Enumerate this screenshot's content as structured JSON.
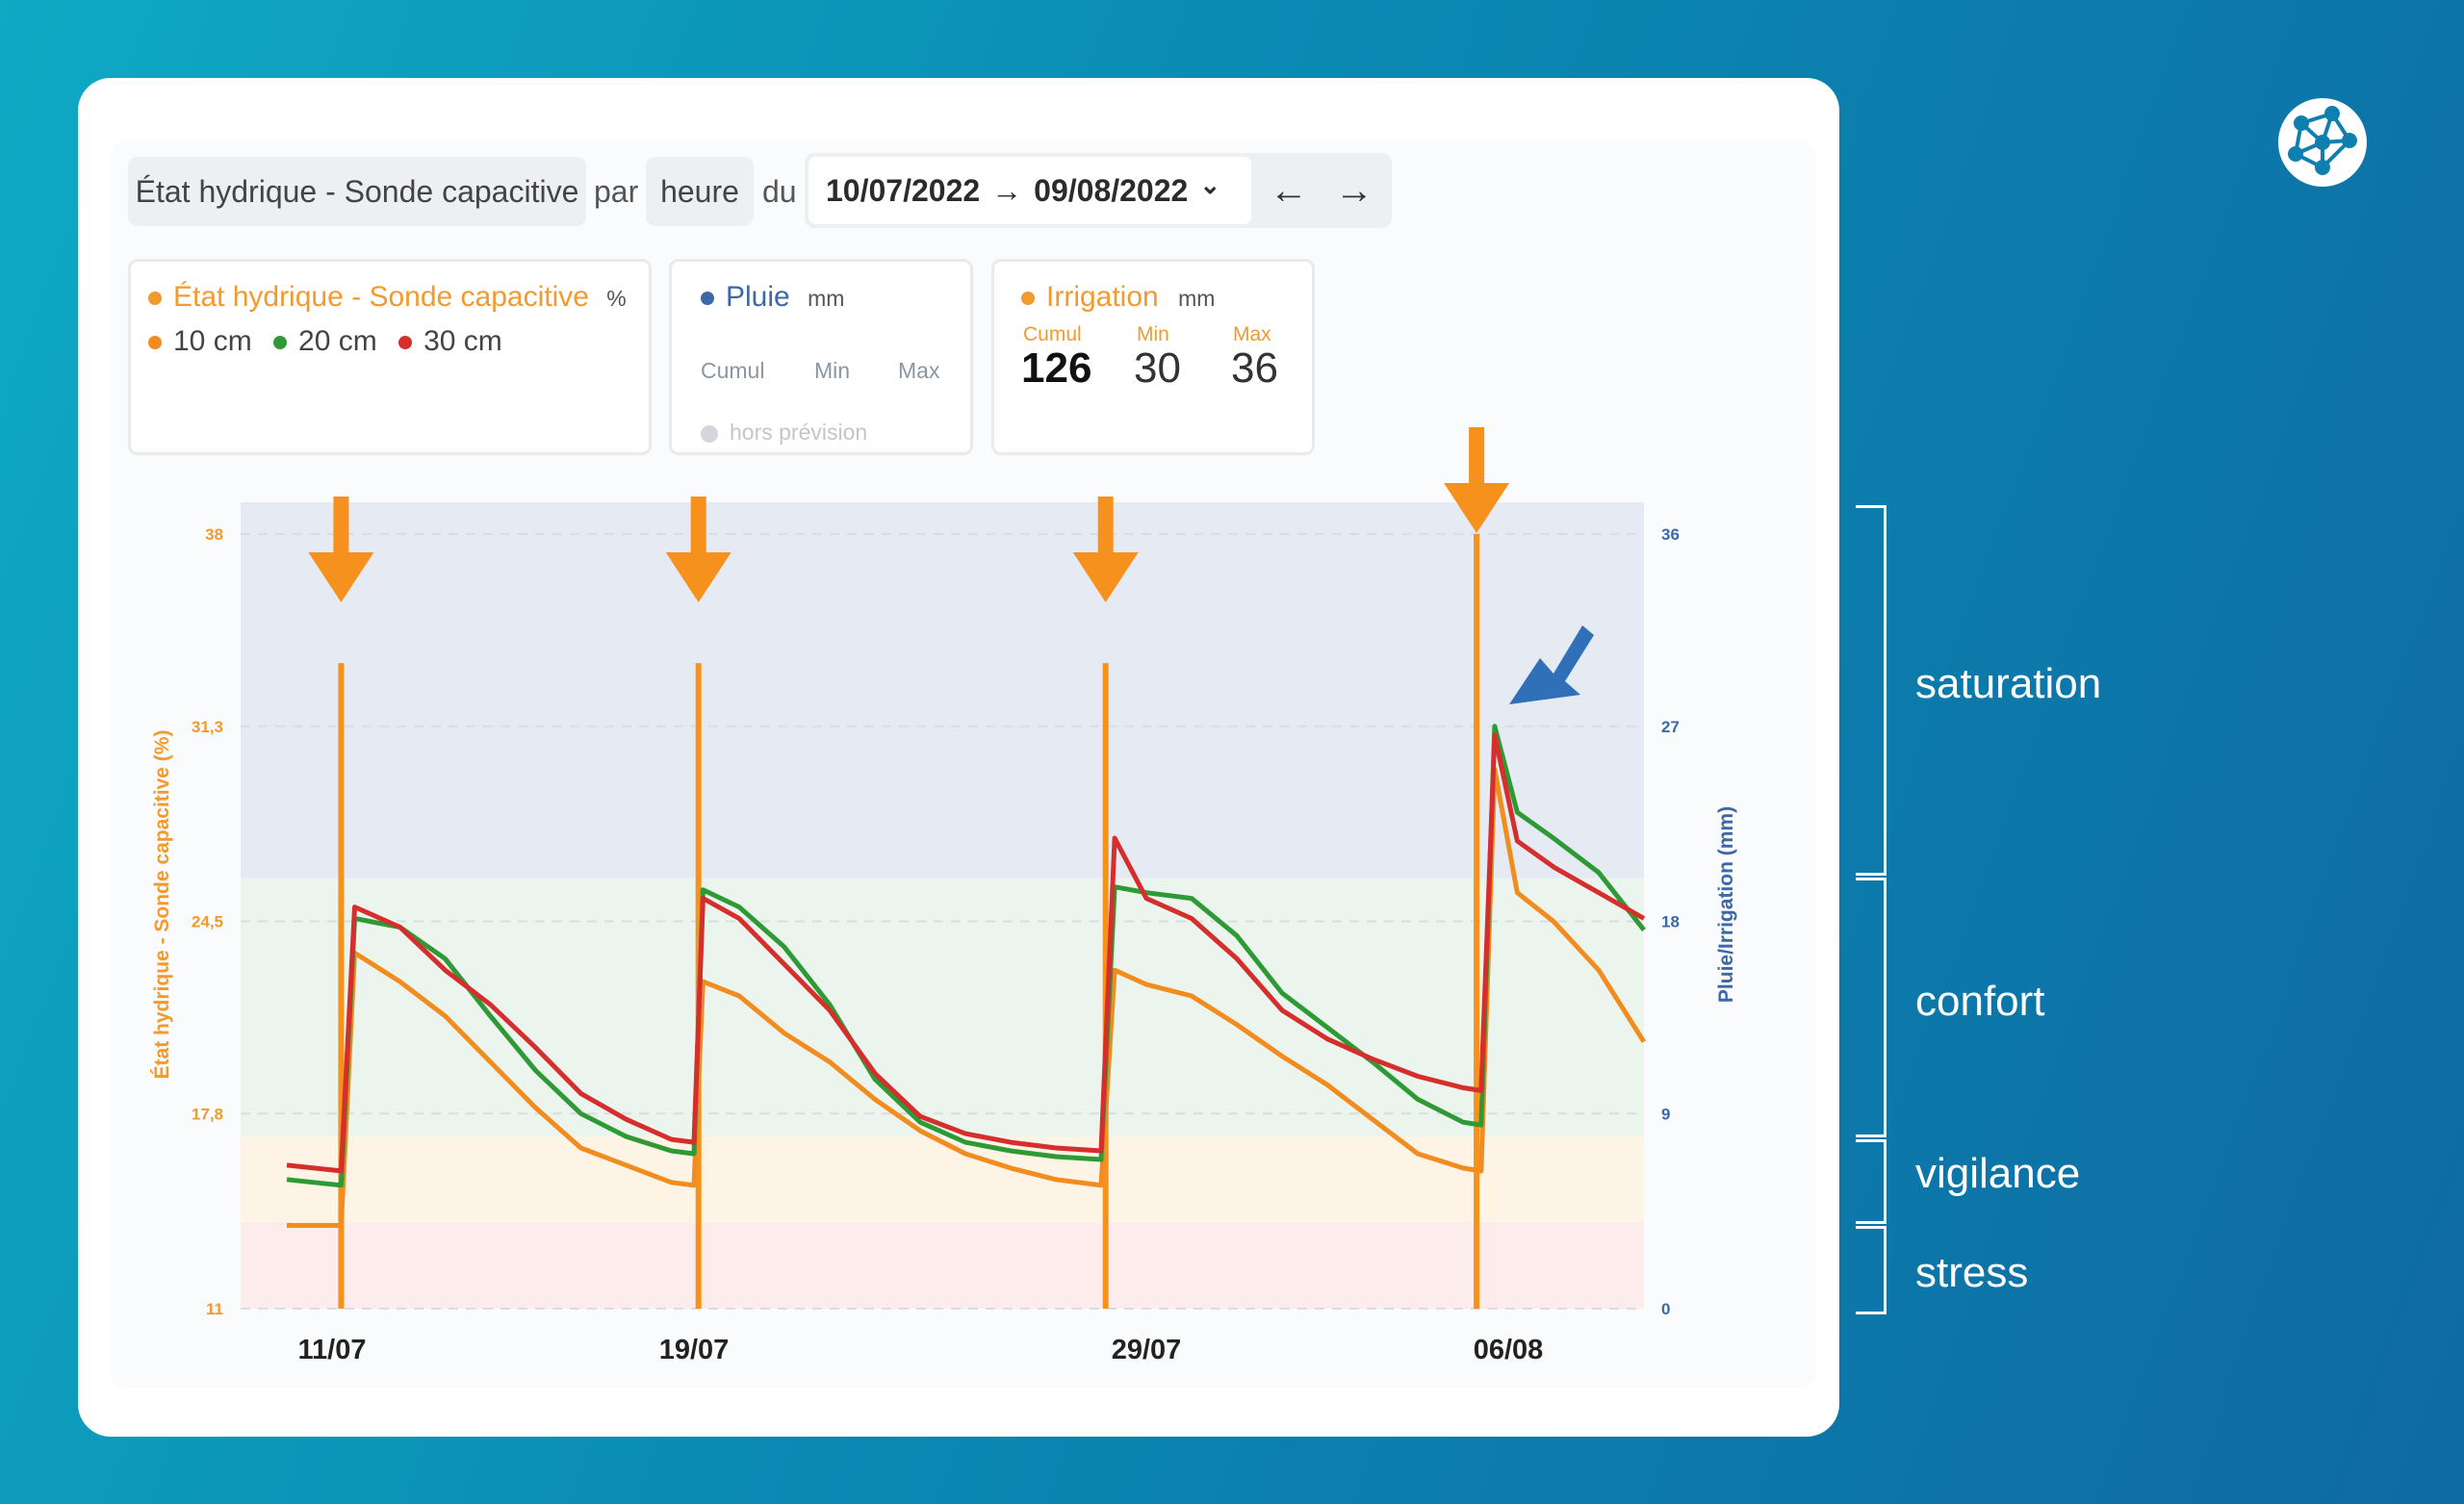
{
  "toolbar": {
    "metric_select": "État hydrique - Sonde capacitive",
    "par_label": "par",
    "period_select": "heure",
    "du_label": "du",
    "date_from": "10/07/2022",
    "date_to": "09/08/2022",
    "date_arrow": "→",
    "date_chevron": "⌄",
    "prev_label": "←",
    "next_label": "→"
  },
  "legend_moisture": {
    "title": "État hydrique - Sonde capacitive",
    "unit": "%",
    "depths": [
      {
        "label": "10 cm",
        "color": "#f28c1e"
      },
      {
        "label": "20 cm",
        "color": "#2e9a35"
      },
      {
        "label": "30 cm",
        "color": "#d62d2d"
      }
    ]
  },
  "legend_rain": {
    "title": "Pluie",
    "unit": "mm",
    "cumul_label": "Cumul",
    "min_label": "Min",
    "max_label": "Max",
    "forecast_label": "hors prévision"
  },
  "legend_irrigation": {
    "title": "Irrigation",
    "unit": "mm",
    "cumul_label": "Cumul",
    "min_label": "Min",
    "max_label": "Max",
    "cumul_value": "126",
    "min_value": "30",
    "max_value": "36"
  },
  "zones": {
    "saturation": "saturation",
    "confort": "confort",
    "vigilance": "vigilance",
    "stress": "stress"
  },
  "chart_data": {
    "type": "line",
    "title": "",
    "ylabel": "État hydrique - Sonde capacitive (%)",
    "y2label": "Pluie/Irrigation (mm)",
    "ylim": [
      11,
      38
    ],
    "y2lim": [
      0,
      36
    ],
    "yticks": [
      "11",
      "17,8",
      "24,5",
      "31,3",
      "38"
    ],
    "y2ticks": [
      "0",
      "9",
      "18",
      "27",
      "36"
    ],
    "x_tick_labels": [
      {
        "day": 1,
        "label": "11/07"
      },
      {
        "day": 9,
        "label": "19/07"
      },
      {
        "day": 19,
        "label": "29/07"
      },
      {
        "day": 27,
        "label": "06/08"
      }
    ],
    "x_range_days": [
      0,
      30
    ],
    "zones": [
      {
        "name": "stress",
        "from": 11,
        "to": 14,
        "color": "#fdecec"
      },
      {
        "name": "vigilance",
        "from": 14,
        "to": 17,
        "color": "#fdf4e6"
      },
      {
        "name": "confort",
        "from": 17,
        "to": 26,
        "color": "#ebf5ee"
      },
      {
        "name": "saturation",
        "from": 26,
        "to": 38,
        "color": "#e6ebf3"
      }
    ],
    "irrigation": [
      {
        "day": 1.2,
        "mm": 30
      },
      {
        "day": 9.1,
        "mm": 30
      },
      {
        "day": 18.1,
        "mm": 30
      },
      {
        "day": 26.3,
        "mm": 36
      }
    ],
    "series": [
      {
        "name": "10 cm",
        "color": "#f28c1e",
        "points": [
          [
            0,
            13.9
          ],
          [
            1.2,
            13.9
          ],
          [
            1.5,
            23.4
          ],
          [
            2.5,
            22.4
          ],
          [
            3.5,
            21.2
          ],
          [
            4.5,
            19.6
          ],
          [
            5.5,
            18
          ],
          [
            6.5,
            16.6
          ],
          [
            7.5,
            16
          ],
          [
            8.5,
            15.4
          ],
          [
            9,
            15.3
          ],
          [
            9.2,
            22.4
          ],
          [
            10,
            21.9
          ],
          [
            11,
            20.6
          ],
          [
            12,
            19.6
          ],
          [
            13,
            18.3
          ],
          [
            14,
            17.2
          ],
          [
            15,
            16.4
          ],
          [
            16,
            15.9
          ],
          [
            17,
            15.5
          ],
          [
            18,
            15.3
          ],
          [
            18.3,
            22.8
          ],
          [
            19,
            22.3
          ],
          [
            20,
            21.9
          ],
          [
            21,
            20.9
          ],
          [
            22,
            19.8
          ],
          [
            23,
            18.8
          ],
          [
            24,
            17.6
          ],
          [
            25,
            16.4
          ],
          [
            26,
            15.9
          ],
          [
            26.4,
            15.8
          ],
          [
            26.7,
            29.8
          ],
          [
            27.2,
            25.5
          ],
          [
            28,
            24.5
          ],
          [
            29,
            22.8
          ],
          [
            30,
            20.3
          ]
        ]
      },
      {
        "name": "20 cm",
        "color": "#2e9a35",
        "points": [
          [
            0,
            15.5
          ],
          [
            1.2,
            15.3
          ],
          [
            1.5,
            24.6
          ],
          [
            2.5,
            24.3
          ],
          [
            3.5,
            23.2
          ],
          [
            4.5,
            21.2
          ],
          [
            5.5,
            19.3
          ],
          [
            6.5,
            17.8
          ],
          [
            7.5,
            17
          ],
          [
            8.5,
            16.5
          ],
          [
            9,
            16.4
          ],
          [
            9.2,
            25.6
          ],
          [
            10,
            25
          ],
          [
            11,
            23.6
          ],
          [
            12,
            21.6
          ],
          [
            13,
            19
          ],
          [
            14,
            17.5
          ],
          [
            15,
            16.8
          ],
          [
            16,
            16.5
          ],
          [
            17,
            16.3
          ],
          [
            18,
            16.2
          ],
          [
            18.3,
            25.7
          ],
          [
            19,
            25.5
          ],
          [
            20,
            25.3
          ],
          [
            21,
            24
          ],
          [
            22,
            22
          ],
          [
            23,
            20.8
          ],
          [
            24,
            19.6
          ],
          [
            25,
            18.3
          ],
          [
            26,
            17.5
          ],
          [
            26.4,
            17.4
          ],
          [
            26.7,
            31.3
          ],
          [
            27.2,
            28.3
          ],
          [
            28,
            27.4
          ],
          [
            29,
            26.2
          ],
          [
            30,
            24.2
          ]
        ]
      },
      {
        "name": "30 cm",
        "color": "#d62d2d",
        "points": [
          [
            0,
            16
          ],
          [
            1.2,
            15.8
          ],
          [
            1.5,
            25
          ],
          [
            2.5,
            24.3
          ],
          [
            3.5,
            22.8
          ],
          [
            4.5,
            21.6
          ],
          [
            5.5,
            20.1
          ],
          [
            6.5,
            18.5
          ],
          [
            7.5,
            17.6
          ],
          [
            8.5,
            16.9
          ],
          [
            9,
            16.8
          ],
          [
            9.2,
            25.3
          ],
          [
            10,
            24.6
          ],
          [
            11,
            23
          ],
          [
            12,
            21.4
          ],
          [
            13,
            19.2
          ],
          [
            14,
            17.7
          ],
          [
            15,
            17.1
          ],
          [
            16,
            16.8
          ],
          [
            17,
            16.6
          ],
          [
            18,
            16.5
          ],
          [
            18.3,
            27.4
          ],
          [
            19,
            25.3
          ],
          [
            20,
            24.6
          ],
          [
            21,
            23.2
          ],
          [
            22,
            21.4
          ],
          [
            23,
            20.4
          ],
          [
            24,
            19.7
          ],
          [
            25,
            19.1
          ],
          [
            26,
            18.7
          ],
          [
            26.4,
            18.6
          ],
          [
            26.7,
            31
          ],
          [
            27.2,
            27.3
          ],
          [
            28,
            26.4
          ],
          [
            29,
            25.5
          ],
          [
            30,
            24.6
          ]
        ]
      }
    ]
  }
}
